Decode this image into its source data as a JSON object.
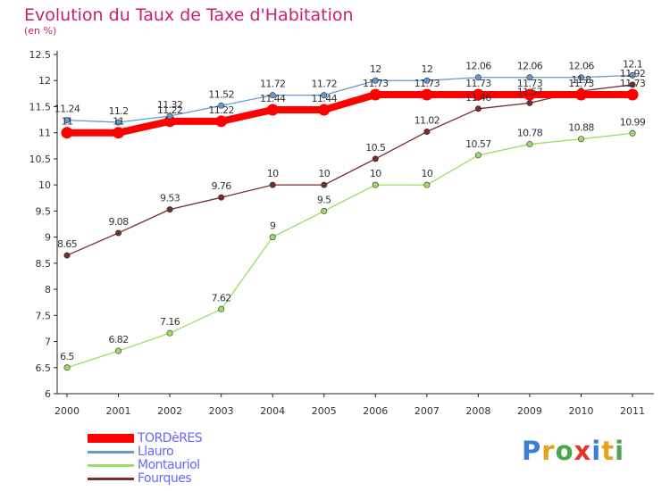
{
  "header": {
    "title": "Evolution du Taux de Taxe d'Habitation",
    "subtitle": "(en %)"
  },
  "logo": {
    "letters": [
      "P",
      "r",
      "o",
      "x",
      "i",
      "t",
      "i"
    ]
  },
  "chart_data": {
    "type": "line",
    "x": [
      "2000",
      "2001",
      "2002",
      "2003",
      "2004",
      "2005",
      "2006",
      "2007",
      "2008",
      "2009",
      "2010",
      "2011"
    ],
    "ylim": [
      6,
      12.5
    ],
    "yticks": [
      "6",
      "6.5",
      "7",
      "7.5",
      "8",
      "8.5",
      "9",
      "9.5",
      "10",
      "10.5",
      "11",
      "11.5",
      "12",
      "12.5"
    ],
    "grid": false,
    "legend_position": "bottom-left",
    "series": [
      {
        "name": "TORDèRES",
        "color": "#ff0000",
        "values": [
          11,
          11,
          11.22,
          11.22,
          11.44,
          11.44,
          11.73,
          11.73,
          11.73,
          11.73,
          11.73,
          11.73
        ],
        "labels": [
          "11",
          "11",
          "11.22",
          "11.22",
          "11.44",
          "11.44",
          "11.73",
          "11.73",
          "11.73",
          "11.73",
          "11.73",
          "11.73"
        ]
      },
      {
        "name": "Llauro",
        "color": "#6699cc",
        "values": [
          11.24,
          11.2,
          11.32,
          11.52,
          11.72,
          11.72,
          12,
          12,
          12.06,
          12.06,
          12.06,
          12.1
        ],
        "labels": [
          "11.24",
          "11.2",
          "11.32",
          "11.52",
          "11.72",
          "11.72",
          "12",
          "12",
          "12.06",
          "12.06",
          "12.06",
          "12.1"
        ]
      },
      {
        "name": "Montauriol",
        "color": "#99dd66",
        "values": [
          6.5,
          6.82,
          7.16,
          7.62,
          9,
          9.5,
          10,
          10,
          10.57,
          10.78,
          10.88,
          10.99
        ],
        "labels": [
          "6.5",
          "6.82",
          "7.16",
          "7.62",
          "9",
          "9.5",
          "10",
          "10",
          "10.57",
          "10.78",
          "10.88",
          "10.99"
        ]
      },
      {
        "name": "Fourques",
        "color": "#7a2b2b",
        "values": [
          8.65,
          9.08,
          9.53,
          9.76,
          10,
          10,
          10.5,
          11.02,
          11.46,
          11.57,
          11.8,
          11.92
        ],
        "labels": [
          "8.65",
          "9.08",
          "9.53",
          "9.76",
          "10",
          "10",
          "10.5",
          "11.02",
          "11.46",
          "11.57",
          "11.8",
          "11.92"
        ]
      }
    ]
  }
}
